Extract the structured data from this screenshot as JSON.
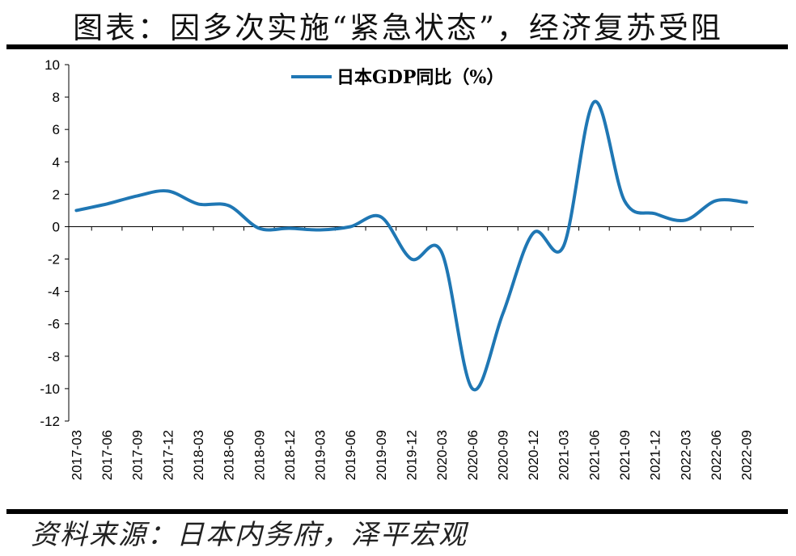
{
  "header": {
    "title": "图表：因多次实施“紧急状态”，经济复苏受阻"
  },
  "footer": {
    "source": "资料来源：日本内务府，泽平宏观"
  },
  "chart_data": {
    "type": "line",
    "title": "",
    "xlabel": "",
    "ylabel": "",
    "ylim": [
      -12,
      10
    ],
    "yticks": [
      10,
      8,
      6,
      4,
      2,
      0,
      -2,
      -4,
      -6,
      -8,
      -10,
      -12
    ],
    "grid": false,
    "legend_position": "top-center",
    "categories": [
      "2017-03",
      "2017-06",
      "2017-09",
      "2017-12",
      "2018-03",
      "2018-06",
      "2018-09",
      "2018-12",
      "2019-03",
      "2019-06",
      "2019-09",
      "2019-12",
      "2020-03",
      "2020-06",
      "2020-09",
      "2020-12",
      "2021-03",
      "2021-06",
      "2021-09",
      "2021-12",
      "2022-03",
      "2022-06",
      "2022-09"
    ],
    "series": [
      {
        "name": "日本GDP同比（%）",
        "color": "#1f77b4",
        "values": [
          1.0,
          1.4,
          1.9,
          2.2,
          1.4,
          1.3,
          -0.1,
          -0.1,
          -0.2,
          0.0,
          0.6,
          -2.0,
          -1.6,
          -10.0,
          -5.4,
          -0.4,
          -1.2,
          7.7,
          1.6,
          0.8,
          0.4,
          1.6,
          1.5
        ]
      }
    ]
  }
}
